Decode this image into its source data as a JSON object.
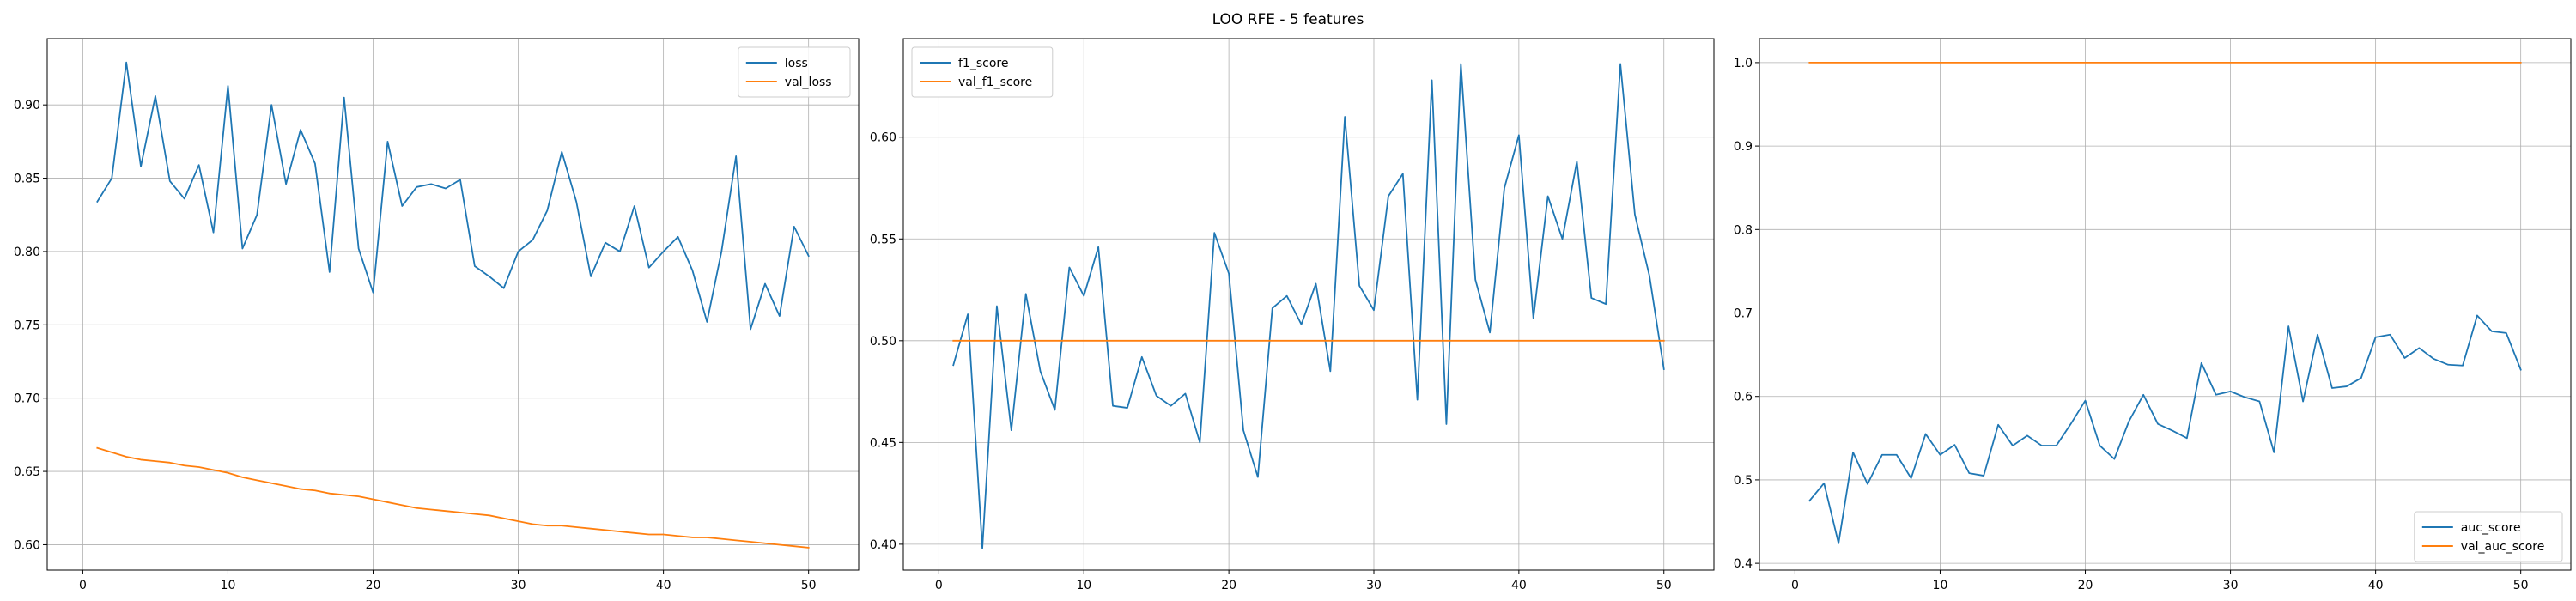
{
  "figure_title": "LOO RFE - 5 features",
  "chart_data": [
    {
      "type": "line",
      "title": "",
      "xlabel": "",
      "ylabel": "",
      "xlim": [
        -2.45,
        53.45
      ],
      "ylim": [
        0.5827,
        0.9452
      ],
      "xticks": [
        0,
        10,
        20,
        30,
        40,
        50
      ],
      "yticks": [
        0.6,
        0.65,
        0.7,
        0.75,
        0.8,
        0.85,
        0.9
      ],
      "ytick_labels": [
        "0.60",
        "0.65",
        "0.70",
        "0.75",
        "0.80",
        "0.85",
        "0.90"
      ],
      "grid": true,
      "legend": "upper right",
      "x": [
        1,
        2,
        3,
        4,
        5,
        6,
        7,
        8,
        9,
        10,
        11,
        12,
        13,
        14,
        15,
        16,
        17,
        18,
        19,
        20,
        21,
        22,
        23,
        24,
        25,
        26,
        27,
        28,
        29,
        30,
        31,
        32,
        33,
        34,
        35,
        36,
        37,
        38,
        39,
        40,
        41,
        42,
        43,
        44,
        45,
        46,
        47,
        48,
        49,
        50
      ],
      "series": [
        {
          "name": "loss",
          "color": "#1f77b4",
          "values": [
            0.834,
            0.85,
            0.929,
            0.858,
            0.906,
            0.848,
            0.836,
            0.859,
            0.813,
            0.913,
            0.802,
            0.825,
            0.9,
            0.846,
            0.883,
            0.86,
            0.786,
            0.905,
            0.802,
            0.772,
            0.875,
            0.831,
            0.844,
            0.846,
            0.843,
            0.849,
            0.79,
            0.783,
            0.775,
            0.8,
            0.808,
            0.828,
            0.868,
            0.834,
            0.783,
            0.806,
            0.8,
            0.831,
            0.789,
            0.8,
            0.81,
            0.787,
            0.752,
            0.8,
            0.865,
            0.747,
            0.778,
            0.756,
            0.817,
            0.797
          ]
        },
        {
          "name": "val_loss",
          "color": "#ff7f0e",
          "values": [
            0.666,
            0.663,
            0.66,
            0.658,
            0.657,
            0.656,
            0.654,
            0.653,
            0.651,
            0.649,
            0.646,
            0.644,
            0.642,
            0.64,
            0.638,
            0.637,
            0.635,
            0.634,
            0.633,
            0.631,
            0.629,
            0.627,
            0.625,
            0.624,
            0.623,
            0.622,
            0.621,
            0.62,
            0.618,
            0.616,
            0.614,
            0.613,
            0.613,
            0.612,
            0.611,
            0.61,
            0.609,
            0.608,
            0.607,
            0.607,
            0.606,
            0.605,
            0.605,
            0.604,
            0.603,
            0.602,
            0.601,
            0.6,
            0.599,
            0.598
          ]
        }
      ]
    },
    {
      "type": "line",
      "title": "",
      "xlabel": "",
      "ylabel": "",
      "xlim": [
        -2.45,
        53.45
      ],
      "ylim": [
        0.3873,
        0.6484
      ],
      "xticks": [
        0,
        10,
        20,
        30,
        40,
        50
      ],
      "yticks": [
        0.4,
        0.45,
        0.5,
        0.55,
        0.6
      ],
      "ytick_labels": [
        "0.40",
        "0.45",
        "0.50",
        "0.55",
        "0.60"
      ],
      "grid": true,
      "legend": "upper left",
      "x": [
        1,
        2,
        3,
        4,
        5,
        6,
        7,
        8,
        9,
        10,
        11,
        12,
        13,
        14,
        15,
        16,
        17,
        18,
        19,
        20,
        21,
        22,
        23,
        24,
        25,
        26,
        27,
        28,
        29,
        30,
        31,
        32,
        33,
        34,
        35,
        36,
        37,
        38,
        39,
        40,
        41,
        42,
        43,
        44,
        45,
        46,
        47,
        48,
        49,
        50
      ],
      "series": [
        {
          "name": "f1_score",
          "color": "#1f77b4",
          "values": [
            0.488,
            0.513,
            0.398,
            0.517,
            0.456,
            0.523,
            0.485,
            0.466,
            0.536,
            0.522,
            0.546,
            0.468,
            0.467,
            0.492,
            0.473,
            0.468,
            0.474,
            0.45,
            0.553,
            0.533,
            0.456,
            0.433,
            0.516,
            0.522,
            0.508,
            0.528,
            0.485,
            0.61,
            0.527,
            0.515,
            0.571,
            0.582,
            0.471,
            0.628,
            0.459,
            0.636,
            0.53,
            0.504,
            0.575,
            0.601,
            0.511,
            0.571,
            0.55,
            0.588,
            0.521,
            0.518,
            0.636,
            0.562,
            0.532,
            0.486
          ]
        },
        {
          "name": "val_f1_score",
          "color": "#ff7f0e",
          "values": [
            0.5,
            0.5,
            0.5,
            0.5,
            0.5,
            0.5,
            0.5,
            0.5,
            0.5,
            0.5,
            0.5,
            0.5,
            0.5,
            0.5,
            0.5,
            0.5,
            0.5,
            0.5,
            0.5,
            0.5,
            0.5,
            0.5,
            0.5,
            0.5,
            0.5,
            0.5,
            0.5,
            0.5,
            0.5,
            0.5,
            0.5,
            0.5,
            0.5,
            0.5,
            0.5,
            0.5,
            0.5,
            0.5,
            0.5,
            0.5,
            0.5,
            0.5,
            0.5,
            0.5,
            0.5,
            0.5,
            0.5,
            0.5,
            0.5,
            0.5
          ]
        }
      ]
    },
    {
      "type": "line",
      "title": "",
      "xlabel": "",
      "ylabel": "",
      "xlim": [
        -2.45,
        53.45
      ],
      "ylim": [
        0.3919,
        1.0287
      ],
      "xticks": [
        0,
        10,
        20,
        30,
        40,
        50
      ],
      "yticks": [
        0.4,
        0.5,
        0.6,
        0.7,
        0.8,
        0.9,
        1.0
      ],
      "ytick_labels": [
        "0.4",
        "0.5",
        "0.6",
        "0.7",
        "0.8",
        "0.9",
        "1.0"
      ],
      "grid": true,
      "legend": "lower right",
      "x": [
        1,
        2,
        3,
        4,
        5,
        6,
        7,
        8,
        9,
        10,
        11,
        12,
        13,
        14,
        15,
        16,
        17,
        18,
        19,
        20,
        21,
        22,
        23,
        24,
        25,
        26,
        27,
        28,
        29,
        30,
        31,
        32,
        33,
        34,
        35,
        36,
        37,
        38,
        39,
        40,
        41,
        42,
        43,
        44,
        45,
        46,
        47,
        48,
        49,
        50
      ],
      "series": [
        {
          "name": "auc_score",
          "color": "#1f77b4",
          "values": [
            0.475,
            0.496,
            0.424,
            0.533,
            0.495,
            0.53,
            0.53,
            0.502,
            0.555,
            0.53,
            0.542,
            0.508,
            0.505,
            0.566,
            0.541,
            0.553,
            0.541,
            0.541,
            0.567,
            0.595,
            0.541,
            0.525,
            0.57,
            0.602,
            0.567,
            0.559,
            0.55,
            0.64,
            0.602,
            0.606,
            0.599,
            0.594,
            0.533,
            0.684,
            0.594,
            0.674,
            0.61,
            0.612,
            0.622,
            0.671,
            0.674,
            0.646,
            0.658,
            0.645,
            0.638,
            0.637,
            0.697,
            0.678,
            0.676,
            0.632
          ]
        },
        {
          "name": "val_auc_score",
          "color": "#ff7f0e",
          "values": [
            1.0,
            1.0,
            1.0,
            1.0,
            1.0,
            1.0,
            1.0,
            1.0,
            1.0,
            1.0,
            1.0,
            1.0,
            1.0,
            1.0,
            1.0,
            1.0,
            1.0,
            1.0,
            1.0,
            1.0,
            1.0,
            1.0,
            1.0,
            1.0,
            1.0,
            1.0,
            1.0,
            1.0,
            1.0,
            1.0,
            1.0,
            1.0,
            1.0,
            1.0,
            1.0,
            1.0,
            1.0,
            1.0,
            1.0,
            1.0,
            1.0,
            1.0,
            1.0,
            1.0,
            1.0,
            1.0,
            1.0,
            1.0,
            1.0,
            1.0
          ]
        }
      ]
    }
  ]
}
